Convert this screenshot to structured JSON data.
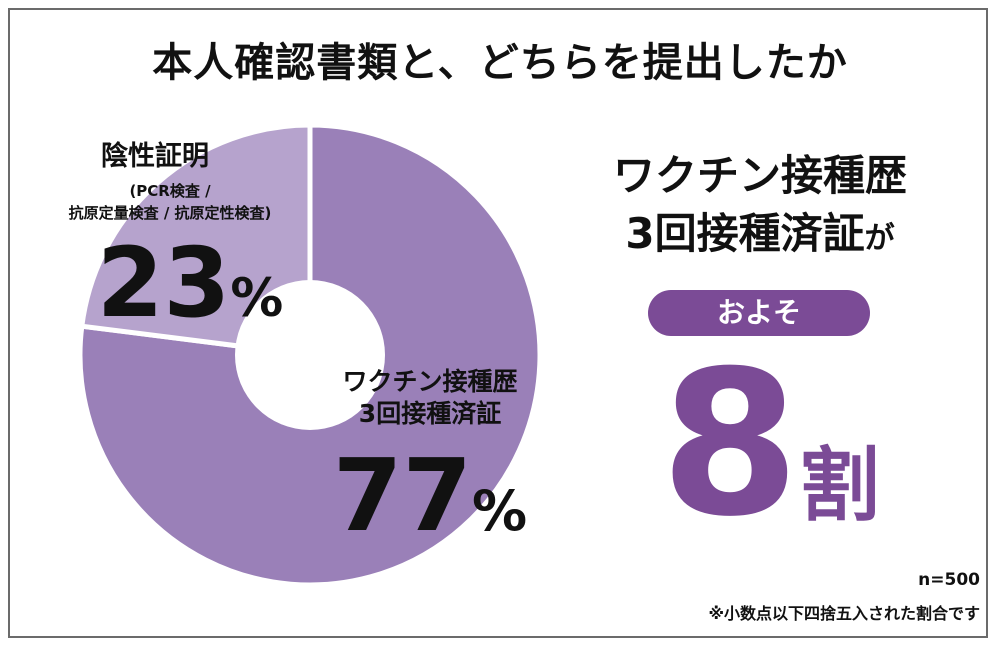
{
  "title": "本人確認書類と、どちらを提出したか",
  "colors": {
    "major": "#9a80b8",
    "minor": "#b6a3cd",
    "accent": "#7b4b96",
    "hole": "#ffffff"
  },
  "chart_data": {
    "type": "pie",
    "title": "本人確認書類と、どちらを提出したか",
    "slices": [
      {
        "label": "ワクチン接種歴\n3回接種済証",
        "value": 77,
        "value_label": "77",
        "unit": "%"
      },
      {
        "label": "陰性証明",
        "sublabel_1": "(PCR検査 /",
        "sublabel_2": "抗原定量検査 / 抗原定性検査)",
        "value": 23,
        "value_label": "23",
        "unit": "%"
      }
    ],
    "legend": "none"
  },
  "headline": {
    "line1": "ワクチン接種歴",
    "line2": "3回接種済証",
    "line2_suffix": "が",
    "pill": "およそ",
    "big_number": "8",
    "big_unit": "割"
  },
  "notes": {
    "n": "n=500",
    "rounding": "※小数点以下四捨五入された割合です"
  }
}
